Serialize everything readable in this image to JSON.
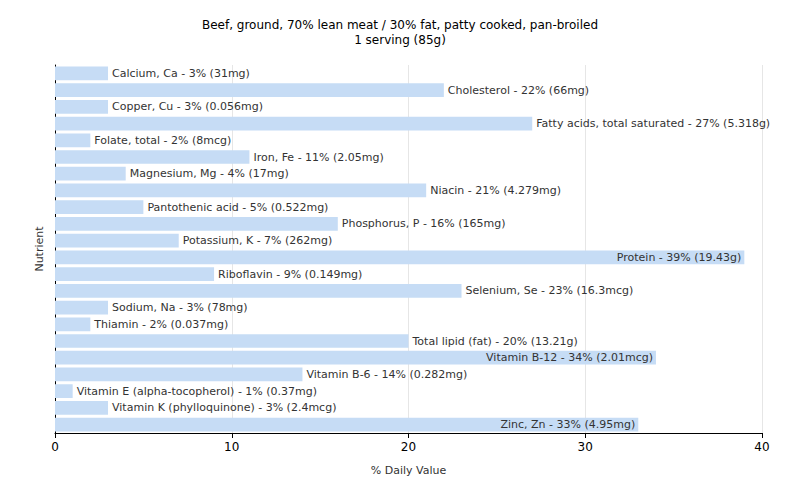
{
  "chart_data": {
    "type": "bar",
    "title": "Beef, ground, 70% lean meat / 30% fat, patty cooked, pan-broiled",
    "subtitle": "1 serving (85g)",
    "x_label": "% Daily Value",
    "y_label": "Nutrient",
    "orientation": "horizontal",
    "categories": [
      null,
      null,
      null,
      null,
      null,
      null,
      null,
      null,
      null,
      null,
      null,
      null,
      null,
      null,
      null,
      null,
      null,
      null,
      null,
      null,
      null,
      null
    ],
    "values": [
      3,
      22,
      3,
      27,
      2,
      11,
      4,
      21,
      5,
      16,
      7,
      39,
      9,
      23,
      3,
      2,
      20,
      34,
      14,
      1,
      3,
      33
    ],
    "value_labels": [
      "Calcium, Ca - 3% (31mg)",
      "Cholesterol - 22% (66mg)",
      "Copper, Cu - 3% (0.056mg)",
      "Fatty acids, total saturated - 27% (5.318g)",
      "Folate, total - 2% (8mcg)",
      "Iron, Fe - 11% (2.05mg)",
      "Magnesium, Mg - 4% (17mg)",
      "Niacin - 21% (4.279mg)",
      "Pantothenic acid - 5% (0.522mg)",
      "Phosphorus, P - 16% (165mg)",
      "Potassium, K - 7% (262mg)",
      "Protein - 39% (19.43g)",
      "Riboflavin - 9% (0.149mg)",
      "Selenium, Se - 23% (16.3mcg)",
      "Sodium, Na - 3% (78mg)",
      "Thiamin - 2% (0.037mg)",
      "Total lipid (fat) - 20% (13.21g)",
      "Vitamin B-12 - 34% (2.01mcg)",
      "Vitamin B-6 - 14% (0.282mg)",
      "Vitamin E (alpha-tocopherol) - 1% (0.37mg)",
      "Vitamin K (phylloquinone) - 3% (2.4mcg)",
      "Zinc, Zn - 33% (4.95mg)"
    ],
    "data_labels": true,
    "color": "#c6dcf5",
    "xlim": [
      0,
      40
    ],
    "xticks": [
      0,
      10,
      20,
      30,
      40
    ],
    "grid": true,
    "tick_labels": "x"
  }
}
